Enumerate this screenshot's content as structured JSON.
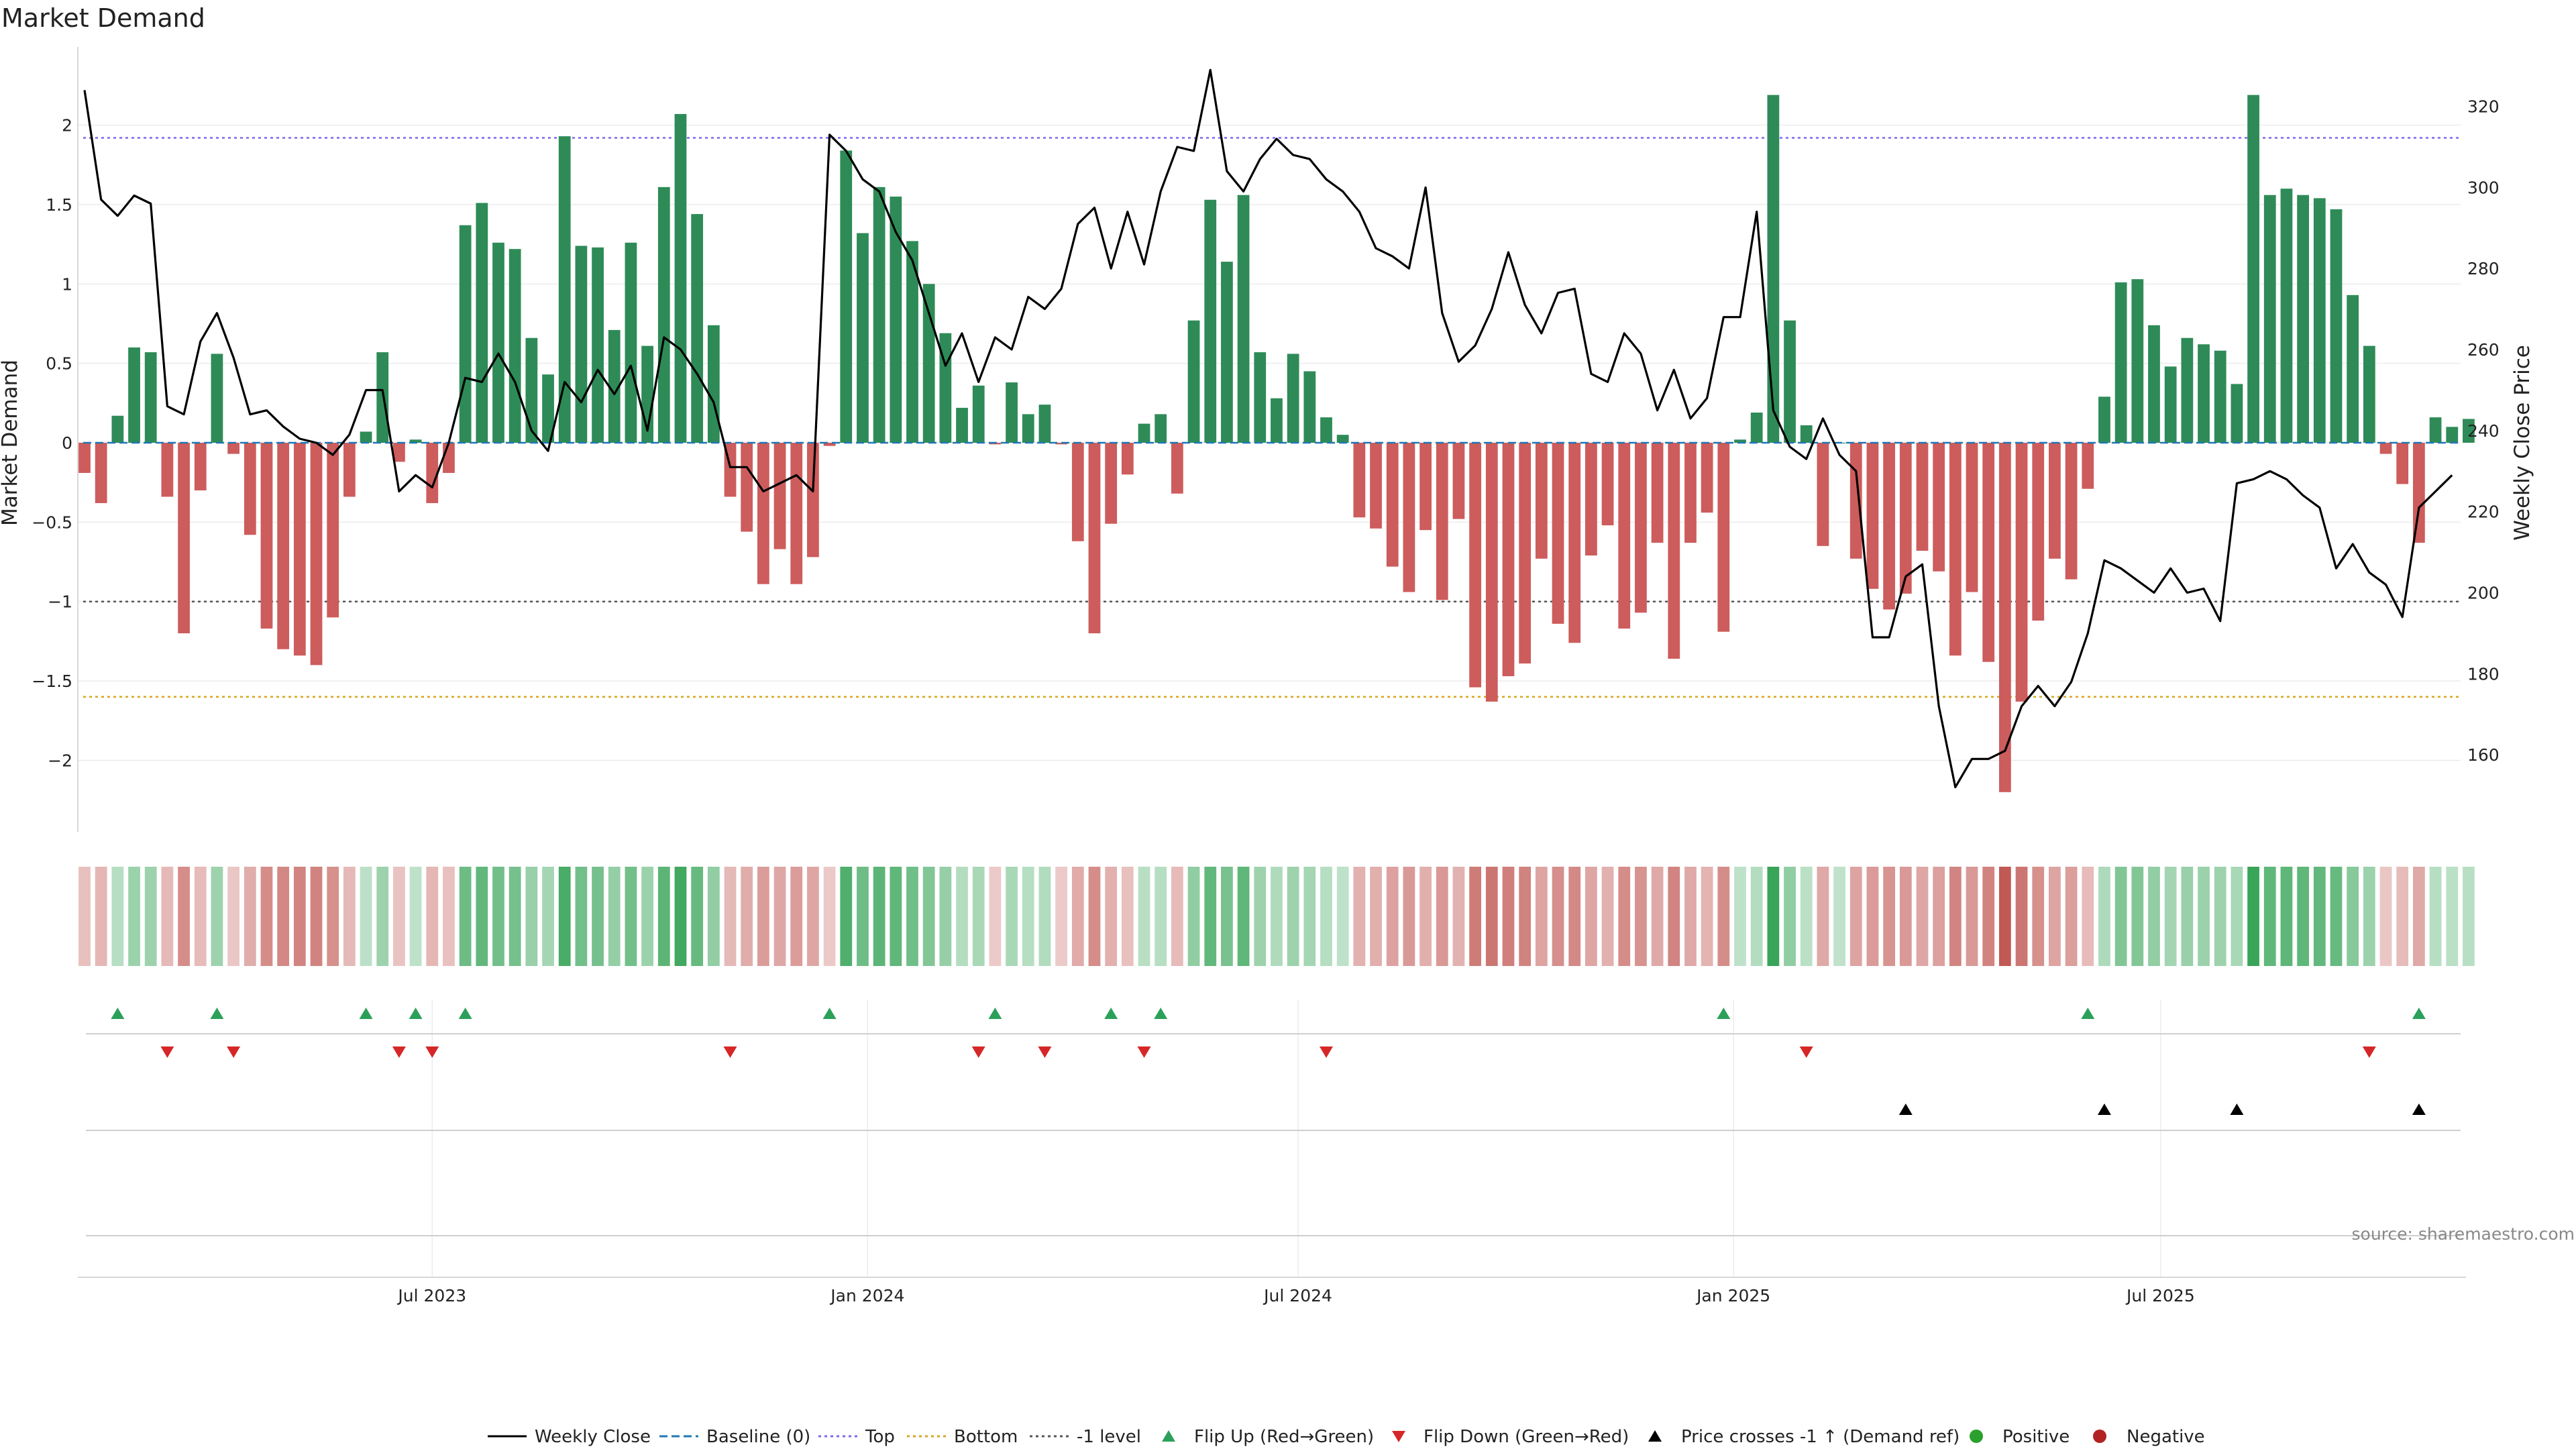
{
  "chart_data": {
    "type": "bar+line",
    "title": "Market Demand",
    "ylabel": "Market Demand",
    "y2label": "Weekly Close Price",
    "ylim": [
      -2.45,
      2.45
    ],
    "y2lim": [
      141,
      333
    ],
    "yticks": [
      -2,
      -1.5,
      -1,
      -0.5,
      0,
      0.5,
      1,
      1.5,
      2
    ],
    "ytick_labels": [
      "−2",
      "−1.5",
      "−1",
      "−0.5",
      "0",
      "0.5",
      "1",
      "1.5",
      "2"
    ],
    "y2ticks": [
      160,
      180,
      200,
      220,
      240,
      260,
      280,
      300,
      320
    ],
    "y2tick_labels": [
      "160",
      "180",
      "200",
      "220",
      "240",
      "260",
      "280",
      "300",
      "320"
    ],
    "x_start": "2023-03-05",
    "x_interval_days": 7,
    "x_ticks": [
      {
        "label": "Jul 2023",
        "index": 21
      },
      {
        "label": "Jan 2024",
        "index": 47.3
      },
      {
        "label": "Jul 2024",
        "index": 73.3
      },
      {
        "label": "Jan 2025",
        "index": 99.6
      },
      {
        "label": "Jul 2025",
        "index": 125.4
      }
    ],
    "demand": [
      -0.19,
      -0.38,
      0.17,
      0.6,
      0.57,
      -0.34,
      -1.2,
      -0.3,
      0.56,
      -0.07,
      -0.58,
      -1.17,
      -1.3,
      -1.34,
      -1.4,
      -1.1,
      -0.34,
      0.07,
      0.57,
      -0.12,
      0.02,
      -0.38,
      -0.19,
      1.37,
      1.51,
      1.26,
      1.22,
      0.66,
      0.43,
      1.93,
      1.24,
      1.23,
      0.71,
      1.26,
      0.61,
      1.61,
      2.07,
      1.44,
      0.74,
      -0.34,
      -0.56,
      -0.89,
      -0.67,
      -0.89,
      -0.72,
      -0.02,
      1.84,
      1.32,
      1.61,
      1.55,
      1.27,
      1.0,
      0.69,
      0.22,
      0.36,
      -0.01,
      0.38,
      0.18,
      0.24,
      -0.01,
      -0.62,
      -1.2,
      -0.51,
      -0.2,
      0.12,
      0.18,
      -0.32,
      0.77,
      1.53,
      1.14,
      1.56,
      0.57,
      0.28,
      0.56,
      0.45,
      0.16,
      0.05,
      -0.47,
      -0.54,
      -0.78,
      -0.94,
      -0.55,
      -0.99,
      -0.48,
      -1.54,
      -1.63,
      -1.47,
      -1.39,
      -0.73,
      -1.14,
      -1.26,
      -0.71,
      -0.52,
      -1.17,
      -1.07,
      -0.63,
      -1.36,
      -0.63,
      -0.44,
      -1.19,
      0.02,
      0.19,
      2.19,
      0.77,
      0.11,
      -0.65,
      0.0,
      -0.73,
      -0.92,
      -1.05,
      -0.95,
      -0.68,
      -0.81,
      -1.34,
      -0.94,
      -1.38,
      -2.2,
      -1.63,
      -1.12,
      -0.73,
      -0.86,
      -0.29,
      0.29,
      1.01,
      1.03,
      0.74,
      0.48,
      0.66,
      0.62,
      0.58,
      0.37,
      2.19,
      1.56,
      1.6,
      1.56,
      1.54,
      1.47,
      0.93,
      0.61,
      -0.07,
      -0.26,
      -0.63,
      0.16,
      0.1,
      0.15
    ],
    "price": [
      324,
      297,
      293,
      298,
      296,
      246,
      244,
      262,
      269,
      258,
      244,
      245,
      241,
      238,
      237,
      234,
      239,
      250,
      250,
      225,
      229,
      226,
      237,
      253,
      252,
      259,
      252,
      240,
      235,
      252,
      247,
      255,
      249,
      256,
      240,
      263,
      260,
      254,
      247,
      231,
      231,
      225,
      227,
      229,
      225,
      313,
      309,
      302,
      299,
      289,
      282,
      269,
      256,
      264,
      252,
      263,
      260,
      273,
      270,
      275,
      291,
      295,
      280,
      294,
      281,
      299,
      310,
      309,
      329,
      304,
      299,
      307,
      312,
      308,
      307,
      302,
      299,
      294,
      285,
      283,
      280,
      300,
      269,
      257,
      261,
      270,
      284,
      271,
      264,
      274,
      275,
      254,
      252,
      264,
      259,
      245,
      255,
      243,
      248,
      268,
      268,
      294,
      245,
      236,
      233,
      243,
      234,
      230,
      189,
      189,
      204,
      207,
      172,
      152,
      159,
      159,
      161,
      172,
      177,
      172,
      178,
      190,
      208,
      206,
      203,
      200,
      206,
      200,
      201,
      193,
      227,
      228,
      230,
      228,
      224,
      221,
      206,
      212,
      205,
      202,
      194,
      221,
      225,
      229
    ],
    "flip_up_indices": [
      2,
      8,
      17,
      20,
      23,
      45,
      55,
      62,
      65,
      99,
      121,
      141
    ],
    "flip_down_indices": [
      5,
      9,
      19,
      21,
      39,
      54,
      58,
      64,
      75,
      104,
      138
    ],
    "price_cross_indices": [
      110,
      122,
      130,
      141
    ],
    "levels": {
      "baseline": 0,
      "top": 1.92,
      "bottom": -1.6,
      "minus_one": -1
    },
    "legend": [
      "Weekly Close",
      "Baseline (0)",
      "Top",
      "Bottom",
      "-1 level",
      "Flip Up (Red→Green)",
      "Flip Down (Green→Red)",
      "Price crosses -1 ↑ (Demand ref)",
      "Positive",
      "Negative"
    ],
    "source": "source: sharemaestro.com",
    "colors": {
      "positive": "#2e8b57",
      "negative": "#cd5c5c",
      "price": "#000000",
      "baseline": "#1f77b4",
      "top": "#7b68ee",
      "bottom": "#daa520",
      "minus_one": "#555555",
      "flip_up": "#2ca05a",
      "flip_down": "#d62728",
      "marker_pos": "#2ca02c",
      "marker_neg": "#b22222"
    }
  }
}
